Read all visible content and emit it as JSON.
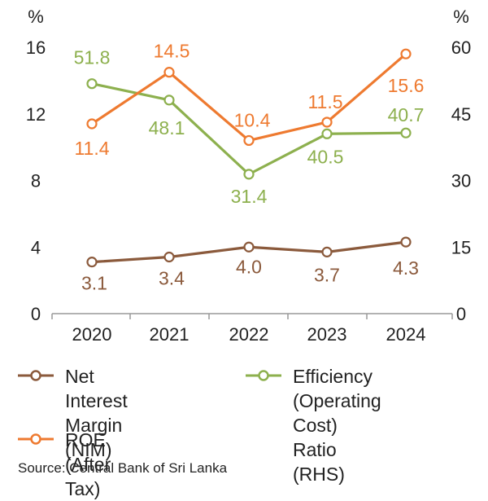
{
  "chart_data": {
    "type": "line",
    "title": "",
    "left_axis": {
      "unit": "%",
      "min": 0,
      "max": 16,
      "ticks": [
        "0",
        "4",
        "8",
        "12",
        "16"
      ]
    },
    "right_axis": {
      "unit": "%",
      "min": 0,
      "max": 60,
      "ticks": [
        "0",
        "15",
        "30",
        "45",
        "60"
      ]
    },
    "categories": [
      "2020",
      "2021",
      "2022",
      "2023",
      "2024"
    ],
    "series": [
      {
        "name": "Net Interest\nMargin (NIM)",
        "axis": "left",
        "color": "#8B5A3C",
        "values": [
          3.1,
          3.4,
          4.0,
          3.7,
          4.3
        ],
        "labels": [
          "3.1",
          "3.4",
          "4.0",
          "3.7",
          "4.3"
        ]
      },
      {
        "name": "Efficiency (Operating\n Cost) Ratio (RHS)",
        "axis": "right",
        "color": "#8DB04E",
        "values": [
          51.8,
          48.1,
          31.4,
          40.5,
          40.7
        ],
        "labels": [
          "51.8",
          "48.1",
          "31.4",
          "40.5",
          "40.7"
        ]
      },
      {
        "name": "ROE (After Tax)",
        "axis": "left",
        "color": "#EE7A30",
        "values": [
          11.4,
          14.5,
          10.4,
          11.5,
          15.6
        ],
        "labels": [
          "11.4",
          "14.5",
          "10.4",
          "11.5",
          "15.6"
        ]
      }
    ],
    "grid": false,
    "legend_position": "bottom"
  },
  "source": "Source: Central Bank of Sri Lanka"
}
